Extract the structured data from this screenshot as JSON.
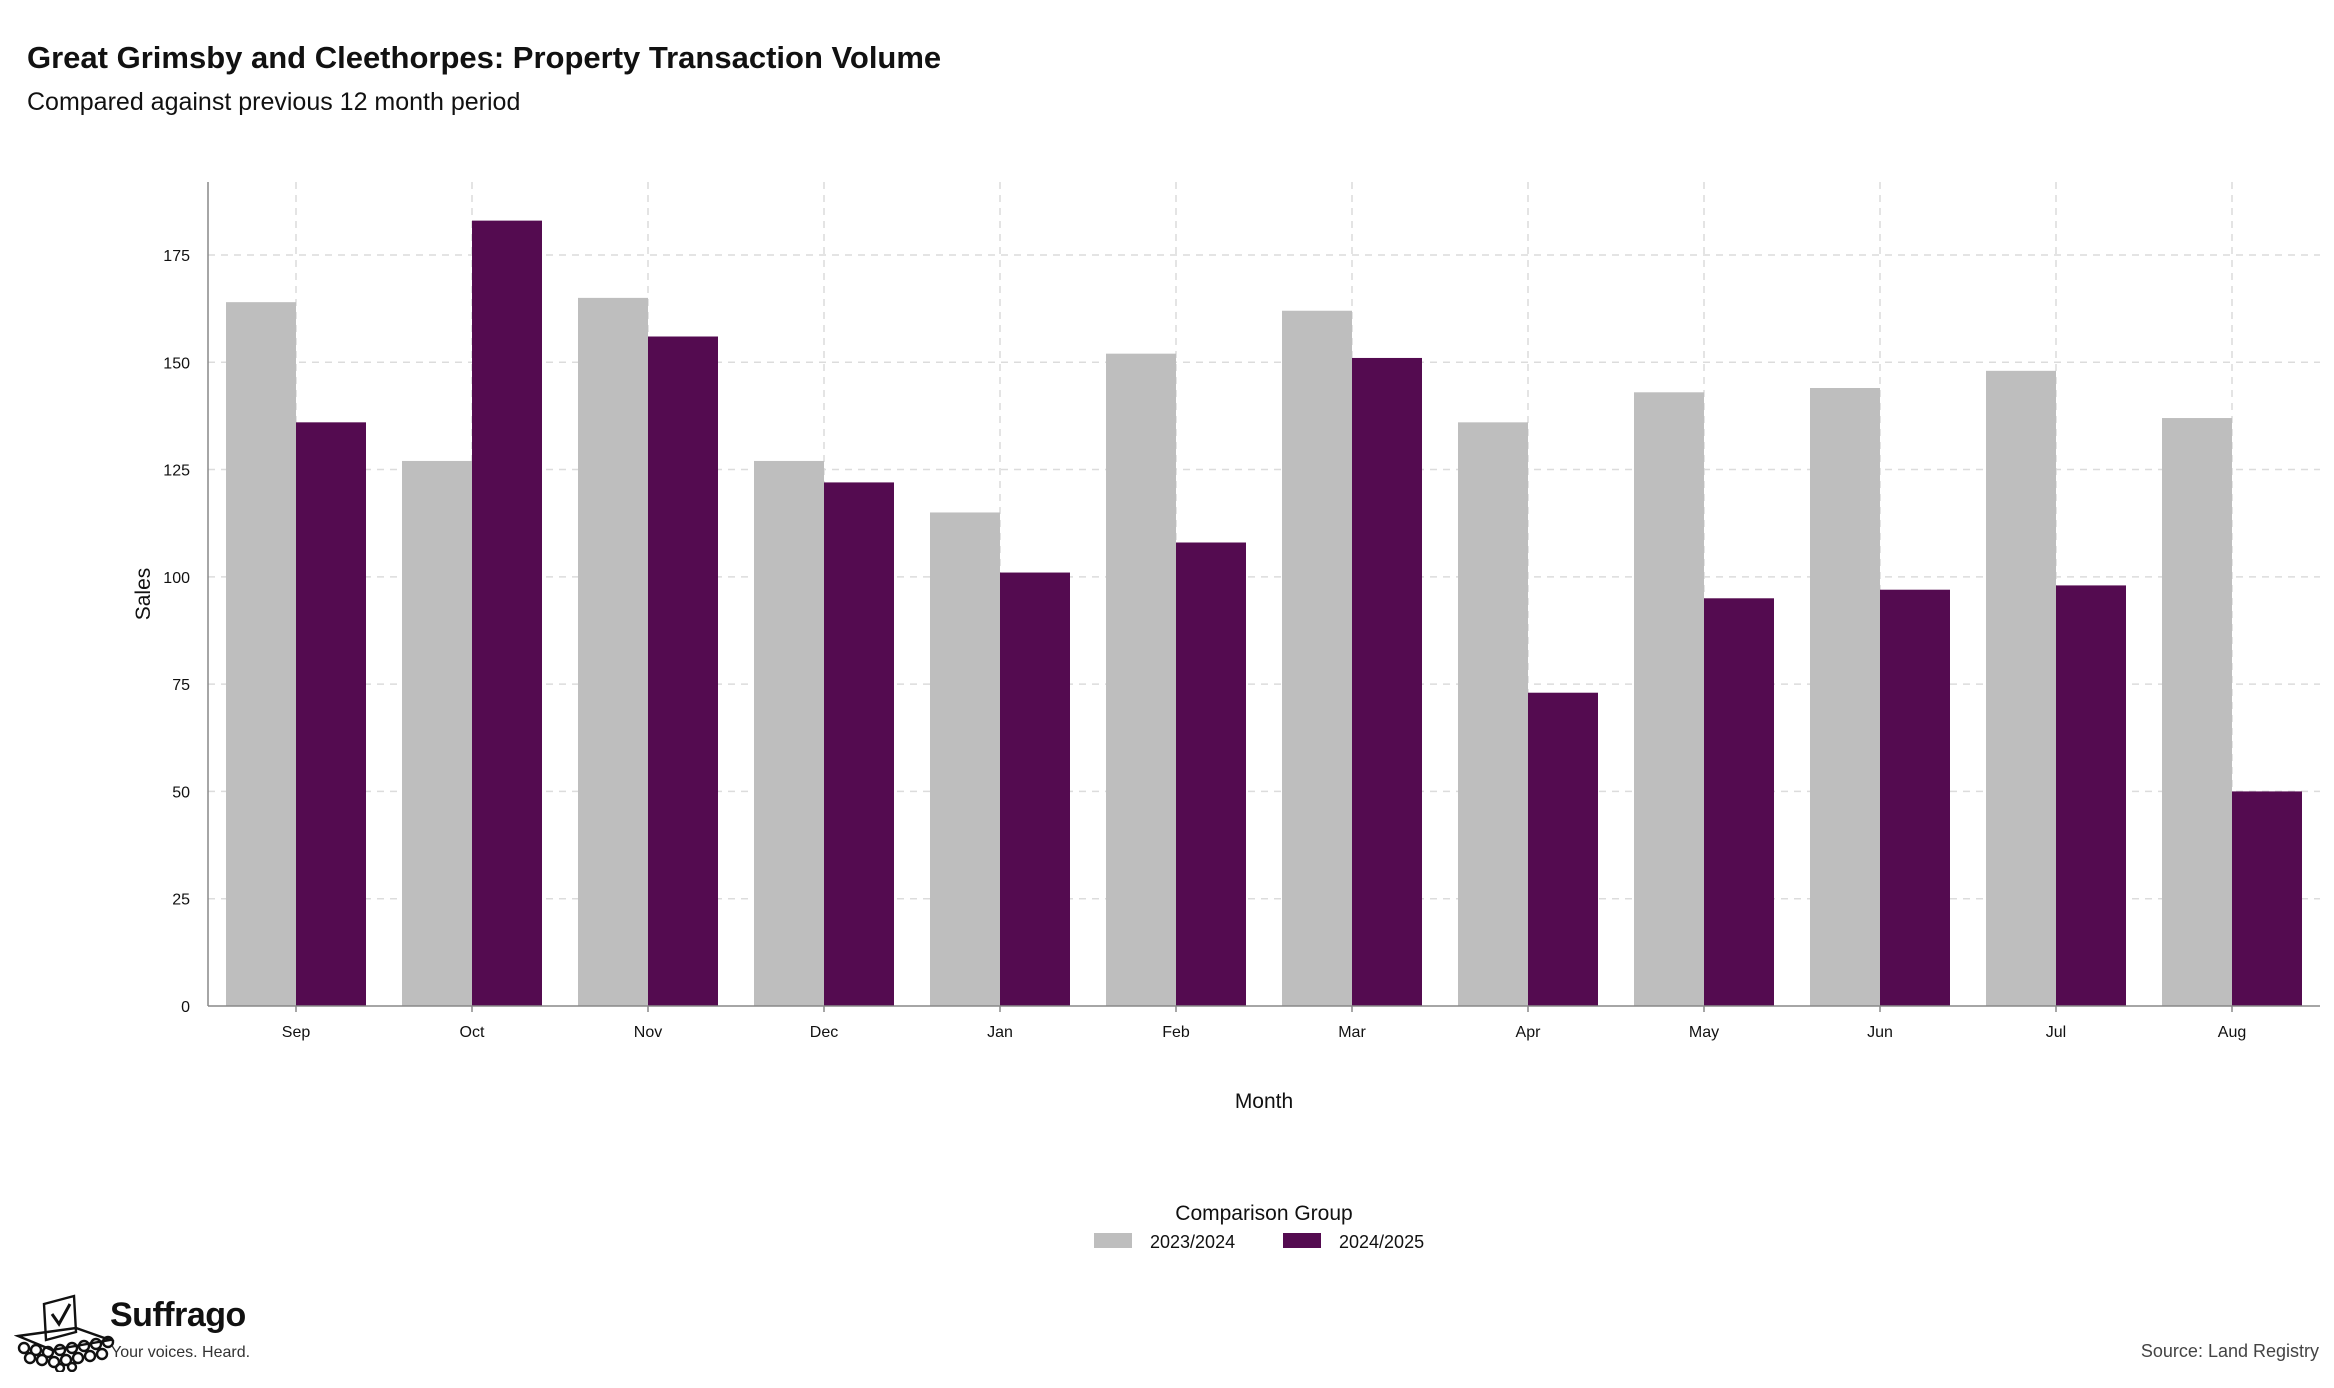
{
  "header": {
    "title": "Great Grimsby and Cleethorpes: Property Transaction Volume",
    "subtitle": "Compared against previous 12 month period"
  },
  "chart_data": {
    "type": "bar",
    "title": "Great Grimsby and Cleethorpes: Property Transaction Volume",
    "subtitle": "Compared against previous 12 month period",
    "xlabel": "Month",
    "ylabel": "Sales",
    "categories": [
      "Sep",
      "Oct",
      "Nov",
      "Dec",
      "Jan",
      "Feb",
      "Mar",
      "Apr",
      "May",
      "Jun",
      "Jul",
      "Aug"
    ],
    "series": [
      {
        "name": "2023/2024",
        "color": "#bebebe",
        "values": [
          164,
          127,
          165,
          127,
          115,
          152,
          162,
          136,
          143,
          144,
          148,
          137
        ]
      },
      {
        "name": "2024/2025",
        "color": "#540b50",
        "values": [
          136,
          183,
          156,
          122,
          101,
          108,
          151,
          73,
          95,
          97,
          98,
          50
        ]
      }
    ],
    "ylim": [
      0,
      192
    ],
    "yticks": [
      0,
      25,
      50,
      75,
      100,
      125,
      150,
      175
    ],
    "grid": true,
    "legend": {
      "title": "Comparison Group",
      "position": "bottom-center"
    }
  },
  "footer": {
    "brand_name": "Suffrago",
    "brand_tagline": "Your voices. Heard.",
    "logo_icon": "ballot-box-icon",
    "source": "Source: Land Registry"
  }
}
